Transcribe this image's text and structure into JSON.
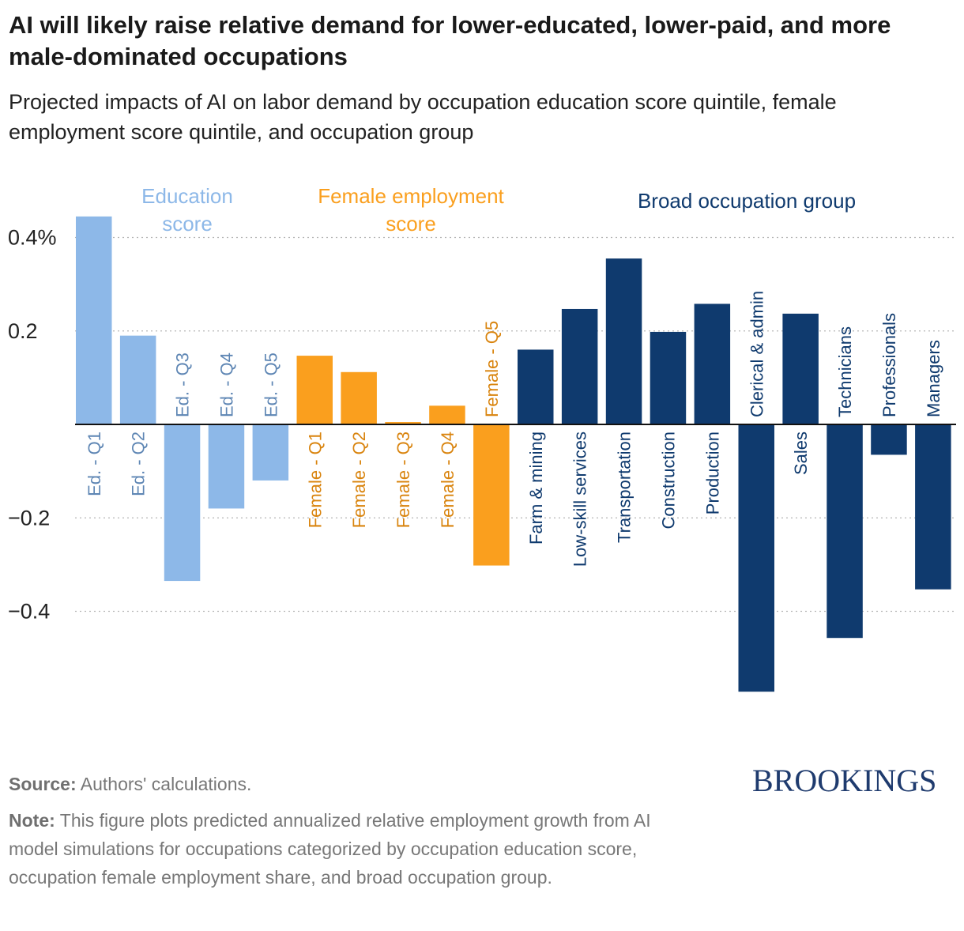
{
  "title": "AI will likely raise relative demand for lower-educated, lower-paid, and more male-dominated occupations",
  "subtitle": "Projected impacts of AI on labor demand by occupation education score quintile, female employment score quintile, and occupation group",
  "source_label": "Source:",
  "source_text": "Authors' calculations.",
  "note_label": "Note:",
  "note_text": "This figure plots predicted annualized relative employment growth from AI model simulations for occupations categorized by occupation education score, occupation female employment share, and broad occupation group.",
  "logo": "BROOKINGS",
  "colors": {
    "education": "#8db8e8",
    "education_label": "#5e86b4",
    "female": "#fa9f1e",
    "female_label": "#d9840e",
    "group": "#0f3a6e",
    "group_label": "#0f3a6e"
  },
  "chart_data": {
    "type": "bar",
    "title": "Projected impacts of AI on labor demand",
    "ylim": [
      -0.57,
      0.45
    ],
    "yticks": [
      0.4,
      0.2,
      -0.2,
      -0.4
    ],
    "ytick_labels": [
      "0.4%",
      "0.2",
      "−0.2",
      "−0.4"
    ],
    "grid": true,
    "groups": [
      {
        "name": "Education score",
        "label_lines": [
          "Education",
          "score"
        ],
        "color_key": "education"
      },
      {
        "name": "Female employment score",
        "label_lines": [
          "Female employment",
          "score"
        ],
        "color_key": "female"
      },
      {
        "name": "Broad occupation group",
        "label_lines": [
          "Broad occupation group"
        ],
        "color_key": "group"
      }
    ],
    "bars": [
      {
        "category": "Ed. - Q1",
        "value": 0.445,
        "group": 0
      },
      {
        "category": "Ed. - Q2",
        "value": 0.19,
        "group": 0
      },
      {
        "category": "Ed. - Q3",
        "value": -0.335,
        "group": 0
      },
      {
        "category": "Ed. - Q4",
        "value": -0.18,
        "group": 0
      },
      {
        "category": "Ed. - Q5",
        "value": -0.12,
        "group": 0
      },
      {
        "category": "Female - Q1",
        "value": 0.147,
        "group": 1
      },
      {
        "category": "Female - Q2",
        "value": 0.112,
        "group": 1
      },
      {
        "category": "Female - Q3",
        "value": 0.005,
        "group": 1
      },
      {
        "category": "Female - Q4",
        "value": 0.04,
        "group": 1
      },
      {
        "category": "Female - Q5",
        "value": -0.302,
        "group": 1
      },
      {
        "category": "Farm & mining",
        "value": 0.16,
        "group": 2
      },
      {
        "category": "Low-skill services",
        "value": 0.247,
        "group": 2
      },
      {
        "category": "Transportation",
        "value": 0.355,
        "group": 2
      },
      {
        "category": "Construction",
        "value": 0.198,
        "group": 2
      },
      {
        "category": "Production",
        "value": 0.258,
        "group": 2
      },
      {
        "category": "Clerical & admin",
        "value": -0.572,
        "group": 2
      },
      {
        "category": "Sales",
        "value": 0.237,
        "group": 2
      },
      {
        "category": "Technicians",
        "value": -0.457,
        "group": 2
      },
      {
        "category": "Professionals",
        "value": -0.065,
        "group": 2
      },
      {
        "category": "Managers",
        "value": -0.353,
        "group": 2
      }
    ]
  }
}
